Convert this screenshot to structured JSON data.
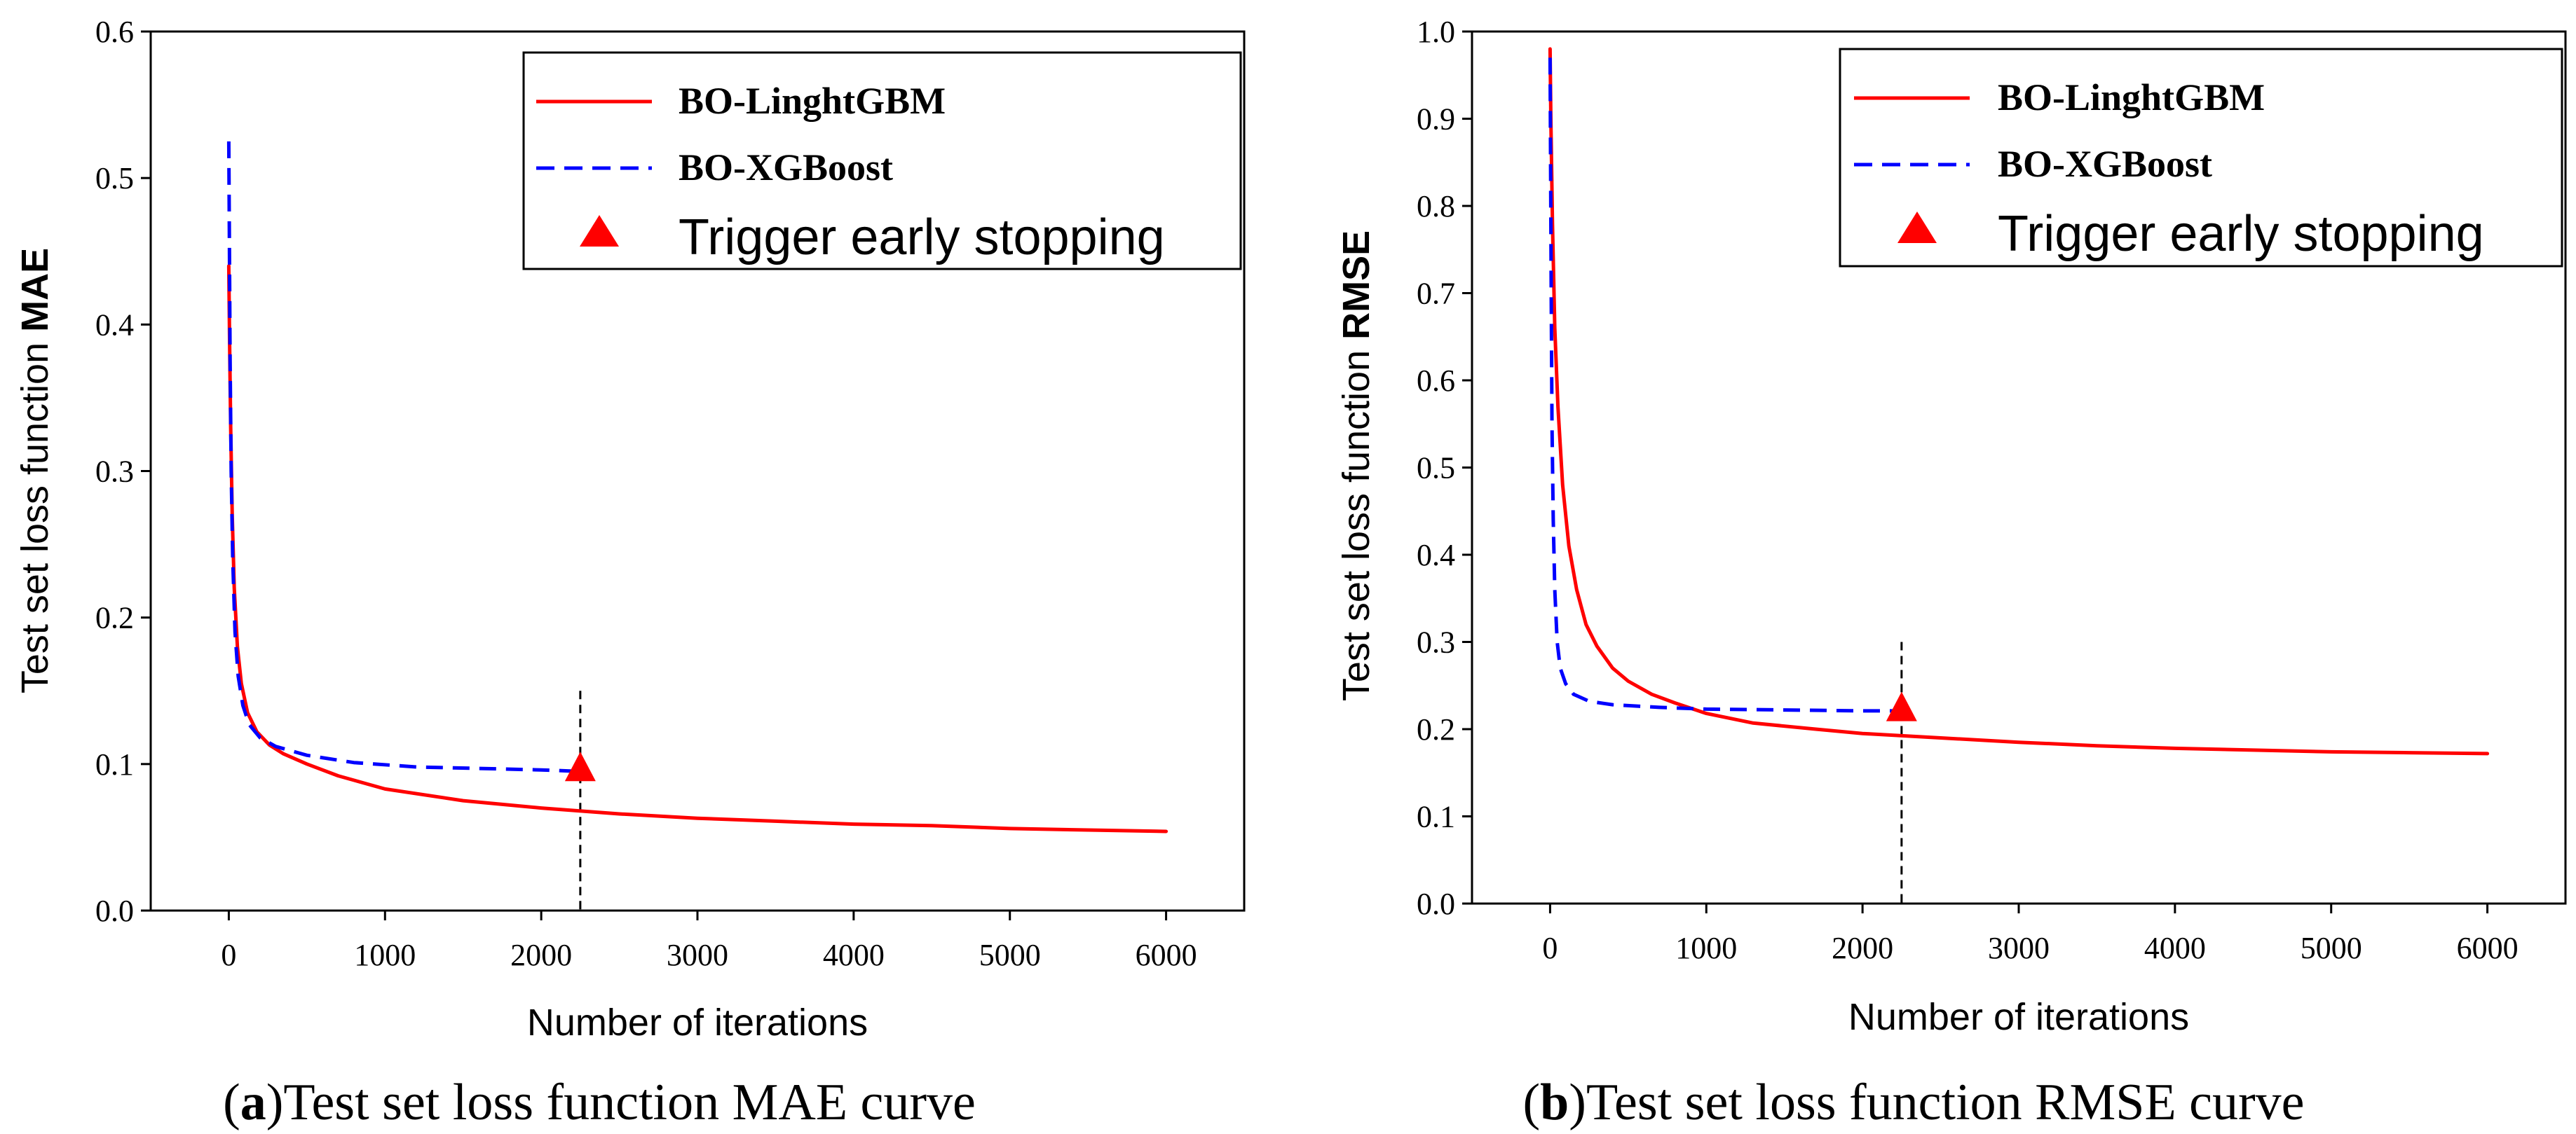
{
  "chart_data": [
    {
      "type": "line",
      "panel_letter": "a",
      "caption": ")Test set loss function MAE curve",
      "xlabel": "Number of iterations",
      "ylabel_prefix": "Test set loss function ",
      "ylabel_metric": "MAE",
      "xlim": [
        -500,
        6500
      ],
      "ylim": [
        0,
        0.6
      ],
      "xticks": [
        0,
        1000,
        2000,
        3000,
        4000,
        5000,
        6000
      ],
      "yticks": [
        "0.0",
        "0.1",
        "0.2",
        "0.3",
        "0.4",
        "0.5",
        "0.6"
      ],
      "legend_labels": [
        "BO-LinghtGBM",
        "BO-XGBoost",
        "Trigger early stopping"
      ],
      "series": [
        {
          "name": "BO-LinghtGBM",
          "color": "#ff0000",
          "style": "solid",
          "points": [
            [
              0,
              0.44
            ],
            [
              5,
              0.39
            ],
            [
              12,
              0.33
            ],
            [
              22,
              0.27
            ],
            [
              35,
              0.22
            ],
            [
              55,
              0.18
            ],
            [
              80,
              0.155
            ],
            [
              120,
              0.135
            ],
            [
              180,
              0.122
            ],
            [
              260,
              0.113
            ],
            [
              350,
              0.107
            ],
            [
              500,
              0.1
            ],
            [
              700,
              0.092
            ],
            [
              1000,
              0.083
            ],
            [
              1500,
              0.075
            ],
            [
              2000,
              0.07
            ],
            [
              2500,
              0.066
            ],
            [
              3000,
              0.063
            ],
            [
              3500,
              0.061
            ],
            [
              4000,
              0.059
            ],
            [
              4500,
              0.058
            ],
            [
              5000,
              0.056
            ],
            [
              5500,
              0.055
            ],
            [
              6000,
              0.054
            ]
          ]
        },
        {
          "name": "BO-XGBoost",
          "color": "#0000ff",
          "style": "dashed",
          "points": [
            [
              0,
              0.525
            ],
            [
              3,
              0.47
            ],
            [
              8,
              0.38
            ],
            [
              15,
              0.3
            ],
            [
              25,
              0.24
            ],
            [
              40,
              0.19
            ],
            [
              60,
              0.16
            ],
            [
              90,
              0.14
            ],
            [
              130,
              0.127
            ],
            [
              200,
              0.118
            ],
            [
              300,
              0.112
            ],
            [
              500,
              0.106
            ],
            [
              800,
              0.101
            ],
            [
              1200,
              0.098
            ],
            [
              1600,
              0.097
            ],
            [
              2000,
              0.096
            ],
            [
              2250,
              0.095
            ]
          ]
        }
      ],
      "early_stopping": {
        "x": 2250,
        "y": 0.096,
        "color": "#ff0000"
      },
      "stop_line": {
        "x": 2250,
        "y_top": 0.15
      }
    },
    {
      "type": "line",
      "panel_letter": "b",
      "caption": ")Test set loss function RMSE curve",
      "xlabel": "Number of iterations",
      "ylabel_prefix": "Test set loss function ",
      "ylabel_metric": "RMSE",
      "xlim": [
        -500,
        6500
      ],
      "ylim": [
        0,
        1.0
      ],
      "xticks": [
        0,
        1000,
        2000,
        3000,
        4000,
        5000,
        6000
      ],
      "yticks": [
        "0.0",
        "0.1",
        "0.2",
        "0.3",
        "0.4",
        "0.5",
        "0.6",
        "0.7",
        "0.8",
        "0.9",
        "1.0"
      ],
      "legend_labels": [
        "BO-LinghtGBM",
        "BO-XGBoost",
        "Trigger early stopping"
      ],
      "series": [
        {
          "name": "BO-LinghtGBM",
          "color": "#ff0000",
          "style": "solid",
          "points": [
            [
              0,
              0.98
            ],
            [
              5,
              0.9
            ],
            [
              15,
              0.78
            ],
            [
              30,
              0.66
            ],
            [
              50,
              0.57
            ],
            [
              80,
              0.48
            ],
            [
              120,
              0.41
            ],
            [
              170,
              0.36
            ],
            [
              230,
              0.32
            ],
            [
              300,
              0.295
            ],
            [
              400,
              0.27
            ],
            [
              500,
              0.255
            ],
            [
              650,
              0.24
            ],
            [
              800,
              0.23
            ],
            [
              1000,
              0.218
            ],
            [
              1300,
              0.207
            ],
            [
              1700,
              0.2
            ],
            [
              2000,
              0.195
            ],
            [
              2500,
              0.19
            ],
            [
              3000,
              0.185
            ],
            [
              3500,
              0.181
            ],
            [
              4000,
              0.178
            ],
            [
              4500,
              0.176
            ],
            [
              5000,
              0.174
            ],
            [
              5500,
              0.173
            ],
            [
              6000,
              0.172
            ]
          ]
        },
        {
          "name": "BO-XGBoost",
          "color": "#0000ff",
          "style": "dashed",
          "points": [
            [
              0,
              0.97
            ],
            [
              3,
              0.85
            ],
            [
              7,
              0.7
            ],
            [
              12,
              0.55
            ],
            [
              20,
              0.44
            ],
            [
              30,
              0.36
            ],
            [
              45,
              0.3
            ],
            [
              65,
              0.27
            ],
            [
              100,
              0.252
            ],
            [
              150,
              0.24
            ],
            [
              250,
              0.232
            ],
            [
              400,
              0.228
            ],
            [
              700,
              0.225
            ],
            [
              1000,
              0.223
            ],
            [
              1500,
              0.222
            ],
            [
              2000,
              0.221
            ],
            [
              2250,
              0.221
            ]
          ]
        }
      ],
      "early_stopping": {
        "x": 2250,
        "y": 0.222,
        "color": "#ff0000"
      },
      "stop_line": {
        "x": 2250,
        "y_top": 0.3
      }
    }
  ]
}
